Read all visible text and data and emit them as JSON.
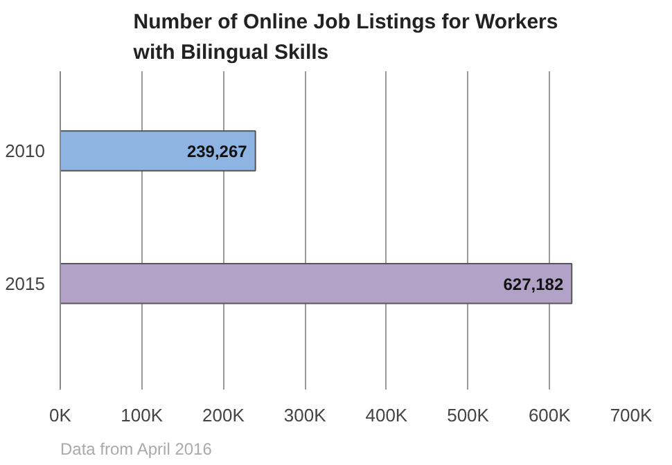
{
  "chart_data": {
    "type": "bar",
    "orientation": "horizontal",
    "title": "Number of Online Job Listings for Workers\nwith Bilingual Skills",
    "categories": [
      "2010",
      "2015"
    ],
    "values": [
      239267,
      627182
    ],
    "colors": [
      "#8eb4e3",
      "#b3a2c7"
    ],
    "value_labels": [
      "239,267",
      "627,182"
    ],
    "xlim": [
      0,
      700000
    ],
    "xticks": [
      {
        "value": 0,
        "label": "0K"
      },
      {
        "value": 100000,
        "label": "100K"
      },
      {
        "value": 200000,
        "label": "200K"
      },
      {
        "value": 300000,
        "label": "300K"
      },
      {
        "value": 400000,
        "label": "400K"
      },
      {
        "value": 500000,
        "label": "500K"
      },
      {
        "value": 600000,
        "label": "600K"
      },
      {
        "value": 700000,
        "label": "700K"
      }
    ],
    "grid": "x",
    "annotations": [
      "Data from April 2016"
    ]
  }
}
